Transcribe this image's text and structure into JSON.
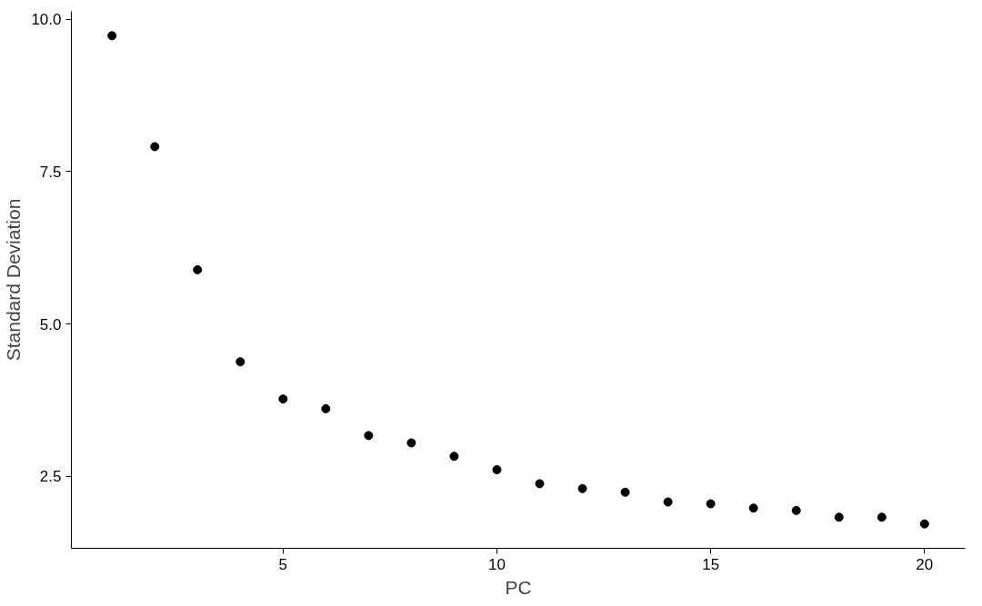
{
  "chart_data": {
    "type": "scatter",
    "xlabel": "PC",
    "ylabel": "Standard Deviation",
    "x": [
      1,
      2,
      3,
      4,
      5,
      6,
      7,
      8,
      9,
      10,
      11,
      12,
      13,
      14,
      15,
      16,
      17,
      18,
      19,
      20
    ],
    "series": [
      {
        "color": "#000000",
        "values": [
          9.73,
          7.91,
          5.89,
          4.38,
          3.77,
          3.61,
          3.17,
          3.05,
          2.83,
          2.61,
          2.38,
          2.3,
          2.24,
          2.08,
          2.05,
          1.98,
          1.94,
          1.83,
          1.83,
          1.72
        ]
      }
    ],
    "xlim": [
      0.05,
      20.95
    ],
    "ylim": [
      1.32,
      10.13
    ],
    "xticks": [
      5,
      10,
      15,
      20
    ],
    "yticks": [
      {
        "value": 2.5,
        "label": "2.5"
      },
      {
        "value": 5,
        "label": "5.0"
      },
      {
        "value": 7.5,
        "label": "7.5"
      },
      {
        "value": 10,
        "label": "10.0"
      }
    ],
    "grid": false,
    "marker": "circle"
  }
}
